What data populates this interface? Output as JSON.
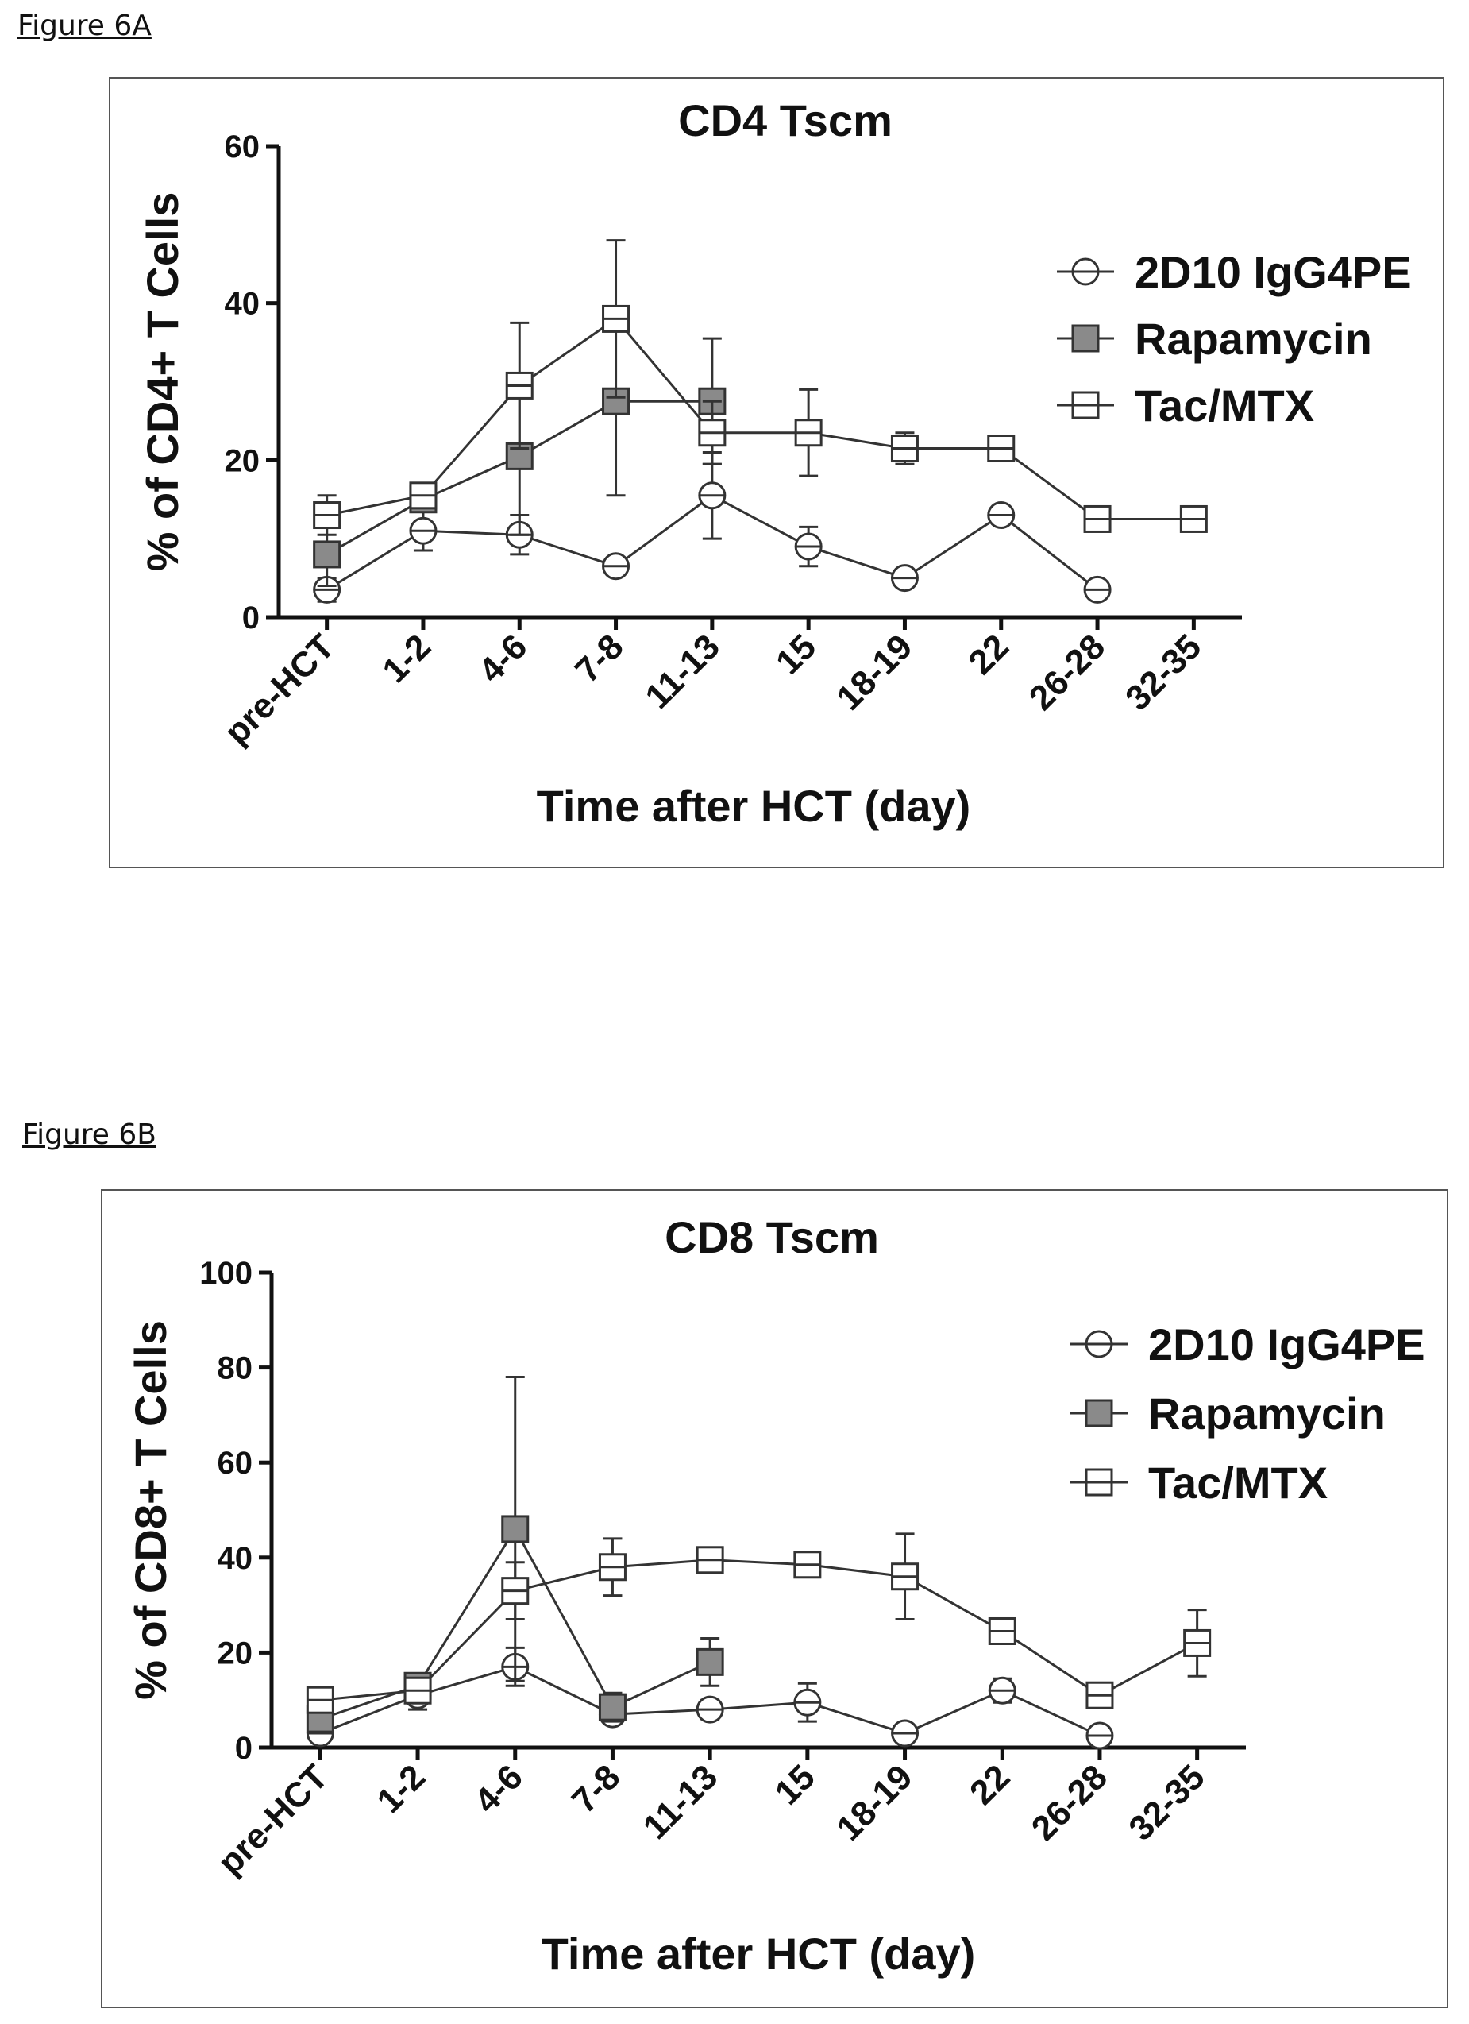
{
  "figures": [
    {
      "label": "Figure 6A"
    },
    {
      "label": "Figure 6B"
    }
  ],
  "chart_data": [
    {
      "type": "line",
      "title": "CD4 Tscm",
      "xlabel": "Time after HCT (day)",
      "ylabel": "% of CD4+ T Cells",
      "ylim": [
        0,
        60
      ],
      "yticks": [
        0,
        20,
        40,
        60
      ],
      "categories": [
        "pre-HCT",
        "1-2",
        "4-6",
        "7-8",
        "11-13",
        "15",
        "18-19",
        "22",
        "26-28",
        "32-35"
      ],
      "legend_position": "right",
      "series": [
        {
          "name": "2D10 IgG4PE",
          "marker": "circle",
          "values": [
            3.5,
            11,
            10.5,
            6.5,
            15.5,
            9,
            5,
            13,
            3.5,
            null
          ],
          "errors": [
            1.5,
            2.5,
            2.5,
            1,
            5.5,
            2.5,
            0.8,
            0.8,
            0.5,
            null
          ]
        },
        {
          "name": "Rapamycin",
          "marker": "square-filled",
          "values": [
            8,
            15,
            20.5,
            27.5,
            27.5,
            null,
            null,
            null,
            null,
            null
          ],
          "errors": [
            4,
            1,
            10,
            12,
            8,
            null,
            null,
            null,
            null,
            null
          ]
        },
        {
          "name": "Tac/MTX",
          "marker": "square-open",
          "values": [
            13,
            15.5,
            29.5,
            38,
            23.5,
            23.5,
            21.5,
            21.5,
            12.5,
            12.5
          ],
          "errors": [
            2.5,
            1,
            8,
            10,
            4,
            5.5,
            2,
            1,
            1,
            1
          ]
        }
      ]
    },
    {
      "type": "line",
      "title": "CD8 Tscm",
      "xlabel": "Time after HCT (day)",
      "ylabel": "% of CD8+ T Cells",
      "ylim": [
        0,
        100
      ],
      "yticks": [
        0,
        20,
        40,
        60,
        80,
        100
      ],
      "categories": [
        "pre-HCT",
        "1-2",
        "4-6",
        "7-8",
        "11-13",
        "15",
        "18-19",
        "22",
        "26-28",
        "32-35"
      ],
      "legend_position": "right",
      "series": [
        {
          "name": "2D10 IgG4PE",
          "marker": "circle",
          "values": [
            3,
            11,
            17,
            7,
            8,
            9.5,
            3,
            12,
            2.5,
            null
          ],
          "errors": [
            1,
            3,
            4,
            1.5,
            2,
            4,
            0.5,
            2.5,
            0.5,
            null
          ]
        },
        {
          "name": "Rapamycin",
          "marker": "square-filled",
          "values": [
            6,
            13,
            46,
            8.5,
            18,
            null,
            null,
            null,
            null,
            null
          ],
          "errors": [
            3,
            2,
            32,
            3,
            5,
            null,
            null,
            null,
            null,
            null
          ]
        },
        {
          "name": "Tac/MTX",
          "marker": "square-open",
          "values": [
            10,
            12,
            33,
            38,
            39.5,
            38.5,
            36,
            24.5,
            11,
            22
          ],
          "errors": [
            1.5,
            2,
            6,
            6,
            2,
            1.5,
            9,
            1,
            1,
            7
          ]
        }
      ]
    }
  ]
}
